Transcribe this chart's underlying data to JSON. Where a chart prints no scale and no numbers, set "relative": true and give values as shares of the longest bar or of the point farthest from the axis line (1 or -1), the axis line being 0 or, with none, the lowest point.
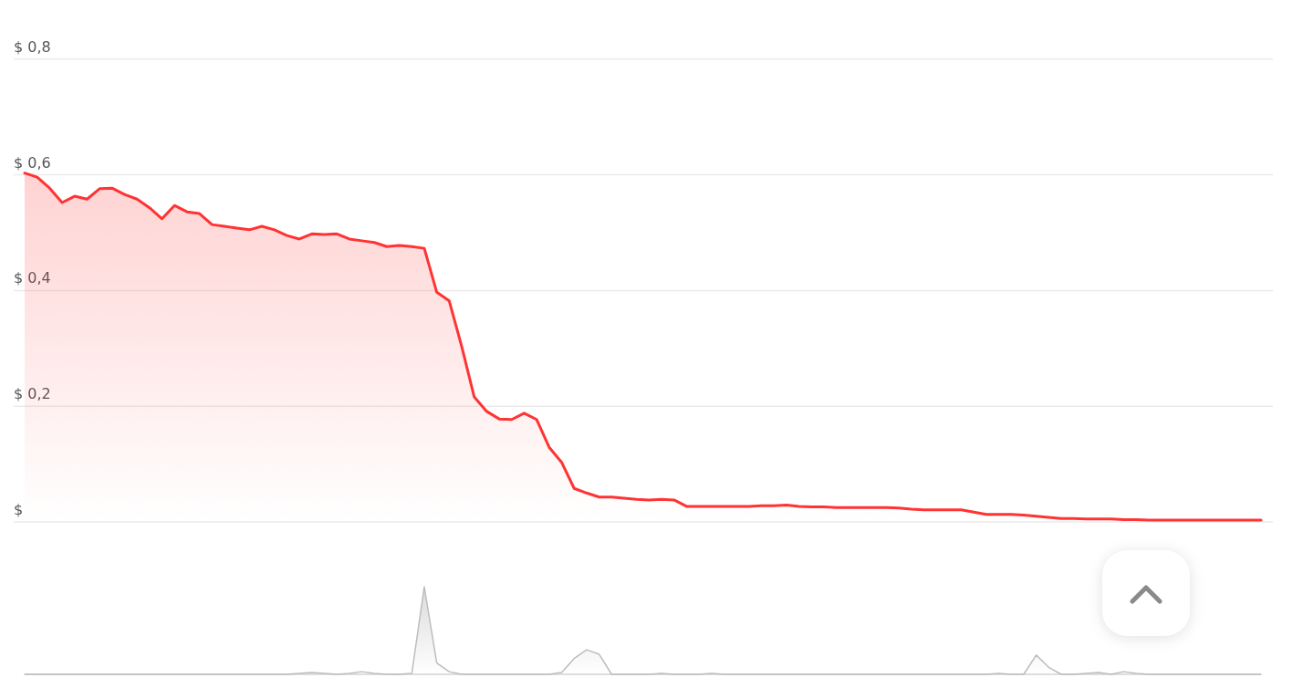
{
  "chart_data": [
    {
      "type": "area",
      "color": "#ff3333",
      "grid": "y",
      "ylim": [
        0,
        0.9
      ],
      "yticks": [
        {
          "value": 0,
          "label": "$"
        },
        {
          "value": 0.2,
          "label": "$ 0,2"
        },
        {
          "value": 0.4,
          "label": "$ 0,4"
        },
        {
          "value": 0.6,
          "label": "$ 0,6"
        },
        {
          "value": 0.8,
          "label": "$ 0,8"
        }
      ],
      "categories": [
        null,
        null,
        null,
        null,
        null,
        null,
        null,
        null,
        null,
        null,
        null,
        null,
        null,
        null,
        null,
        null,
        null,
        null,
        null,
        null,
        null,
        null,
        null,
        null,
        null,
        null,
        null,
        null,
        null,
        null,
        null,
        null,
        null,
        null,
        null,
        null,
        null,
        null,
        null,
        null,
        null,
        null,
        null,
        null,
        null,
        null,
        null,
        null,
        null,
        null,
        null,
        null,
        null,
        null,
        null,
        null,
        null,
        null,
        null,
        null,
        null,
        null,
        null,
        null,
        null,
        null,
        null,
        null,
        null,
        null,
        null,
        null,
        null,
        null,
        null,
        null,
        null,
        null,
        null,
        null,
        null,
        null,
        null,
        null,
        null,
        null,
        null,
        null,
        null,
        null,
        null,
        null,
        null,
        null,
        null,
        null,
        null,
        null,
        null,
        null
      ],
      "values": [
        0.603,
        0.596,
        0.577,
        0.552,
        0.563,
        0.558,
        0.576,
        0.577,
        0.566,
        0.558,
        0.543,
        0.524,
        0.547,
        0.536,
        0.533,
        0.514,
        0.511,
        0.508,
        0.505,
        0.511,
        0.505,
        0.495,
        0.489,
        0.498,
        0.497,
        0.498,
        0.489,
        0.486,
        0.483,
        0.476,
        0.478,
        0.476,
        0.473,
        0.397,
        0.382,
        0.303,
        0.216,
        0.191,
        0.178,
        0.177,
        0.188,
        0.177,
        0.129,
        0.103,
        0.058,
        0.05,
        0.043,
        0.043,
        0.041,
        0.039,
        0.038,
        0.039,
        0.038,
        0.027,
        0.027,
        0.027,
        0.027,
        0.027,
        0.027,
        0.028,
        0.028,
        0.029,
        0.027,
        0.026,
        0.026,
        0.025,
        0.025,
        0.025,
        0.025,
        0.025,
        0.024,
        0.022,
        0.021,
        0.021,
        0.021,
        0.021,
        0.017,
        0.013,
        0.013,
        0.013,
        0.012,
        0.01,
        0.008,
        0.006,
        0.006,
        0.005,
        0.005,
        0.005,
        0.004,
        0.004,
        0.003,
        0.003,
        0.003,
        0.003,
        0.003,
        0.003,
        0.003,
        0.003,
        0.003,
        0.003
      ]
    },
    {
      "type": "area",
      "color": "#bdbdbd",
      "relative": true,
      "categories": [
        null,
        null,
        null,
        null,
        null,
        null,
        null,
        null,
        null,
        null,
        null,
        null,
        null,
        null,
        null,
        null,
        null,
        null,
        null,
        null,
        null,
        null,
        null,
        null,
        null,
        null,
        null,
        null,
        null,
        null,
        null,
        null,
        null,
        null,
        null,
        null,
        null,
        null,
        null,
        null,
        null,
        null,
        null,
        null,
        null,
        null,
        null,
        null,
        null,
        null,
        null,
        null,
        null,
        null,
        null,
        null,
        null,
        null,
        null,
        null,
        null,
        null,
        null,
        null,
        null,
        null,
        null,
        null,
        null,
        null,
        null,
        null,
        null,
        null,
        null,
        null,
        null,
        null,
        null,
        null,
        null,
        null,
        null,
        null,
        null,
        null,
        null,
        null,
        null,
        null,
        null,
        null,
        null,
        null,
        null,
        null,
        null,
        null,
        null,
        null
      ],
      "values": [
        0,
        0,
        0,
        0,
        0,
        0,
        0,
        0,
        0,
        0,
        0,
        0,
        0,
        0,
        0,
        0,
        0,
        0,
        0,
        0,
        0,
        0,
        0.01,
        0.02,
        0.01,
        0,
        0.01,
        0.03,
        0.01,
        0,
        0,
        0.01,
        1,
        0.13,
        0.03,
        0,
        0,
        0,
        0,
        0,
        0,
        0,
        0,
        0.02,
        0.18,
        0.28,
        0.23,
        0,
        0,
        0,
        0,
        0.01,
        0,
        0,
        0,
        0.01,
        0,
        0,
        0,
        0,
        0,
        0,
        0,
        0,
        0,
        0,
        0,
        0,
        0,
        0,
        0,
        0,
        0,
        0,
        0,
        0,
        0,
        0,
        0.01,
        0,
        0,
        0.22,
        0.08,
        0,
        0,
        0.01,
        0.02,
        0,
        0.03,
        0.01,
        0,
        0,
        0,
        0,
        0,
        0,
        0,
        0,
        0,
        0
      ]
    }
  ]
}
